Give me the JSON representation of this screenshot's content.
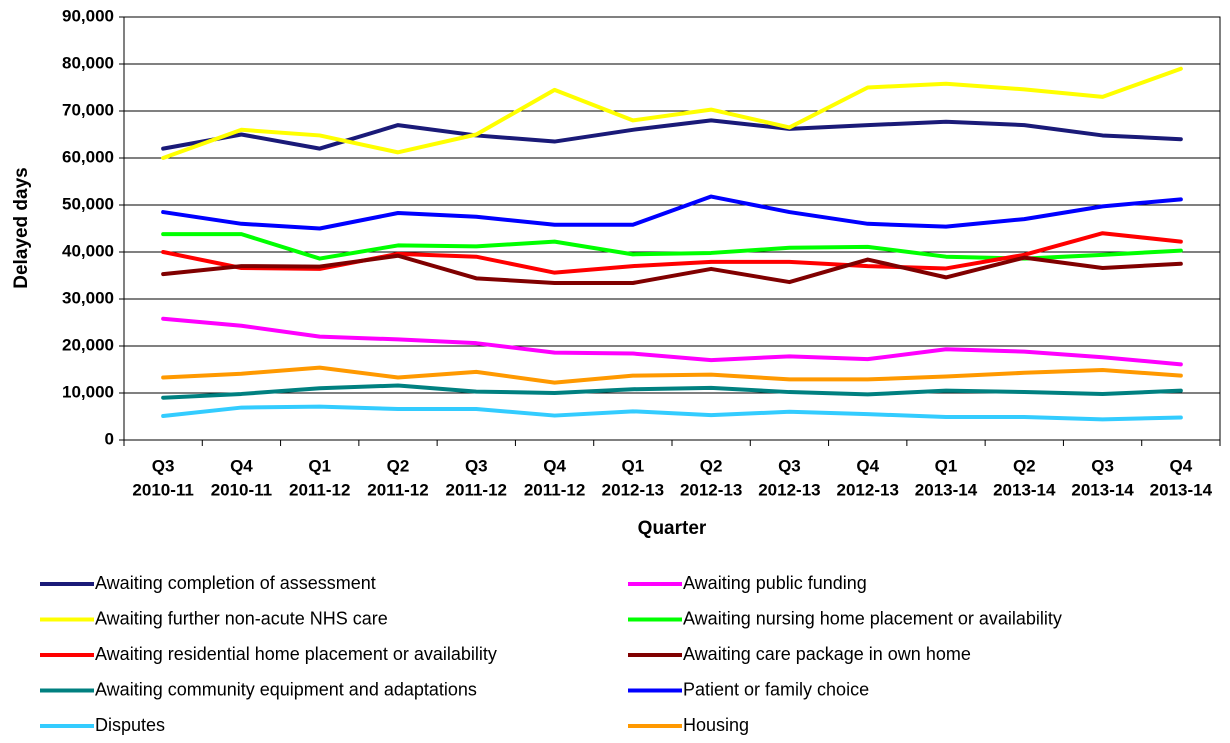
{
  "chart_data": {
    "type": "line",
    "x_label": "Quarter",
    "y_label": "Delayed days",
    "categories": [
      [
        "Q3",
        "2010-11"
      ],
      [
        "Q4",
        "2010-11"
      ],
      [
        "Q1",
        "2011-12"
      ],
      [
        "Q2",
        "2011-12"
      ],
      [
        "Q3",
        "2011-12"
      ],
      [
        "Q4",
        "2011-12"
      ],
      [
        "Q1",
        "2012-13"
      ],
      [
        "Q2",
        "2012-13"
      ],
      [
        "Q3",
        "2012-13"
      ],
      [
        "Q4",
        "2012-13"
      ],
      [
        "Q1",
        "2013-14"
      ],
      [
        "Q2",
        "2013-14"
      ],
      [
        "Q3",
        "2013-14"
      ],
      [
        "Q4",
        "2013-14"
      ]
    ],
    "ylim": [
      0,
      90000
    ],
    "yticks": [
      0,
      {
        "value": 10000,
        "label": "10,000"
      },
      {
        "value": 20000,
        "label": "20,000"
      },
      {
        "value": 30000,
        "label": "30,000"
      },
      {
        "value": 40000,
        "label": "40,000"
      },
      {
        "value": 50000,
        "label": "50,000"
      },
      {
        "value": 60000,
        "label": "60,000"
      },
      {
        "value": 70000,
        "label": "70,000"
      },
      {
        "value": 80000,
        "label": "80,000"
      },
      {
        "value": 90000,
        "label": "90,000"
      }
    ],
    "grid": true,
    "series": [
      {
        "name": "Awaiting completion of assessment",
        "color": "#1a1a78",
        "values": [
          62000,
          65000,
          62000,
          67000,
          64800,
          63500,
          66000,
          68000,
          66200,
          67000,
          67700,
          67000,
          64800,
          64000
        ]
      },
      {
        "name": "Awaiting public funding",
        "color": "#ff00ff",
        "values": [
          25800,
          24300,
          22000,
          21400,
          20600,
          18600,
          18400,
          17000,
          17800,
          17200,
          19300,
          18800,
          17600,
          16100
        ]
      },
      {
        "name": "Awaiting further non-acute NHS care",
        "color": "#ffff00",
        "values": [
          60000,
          66000,
          64800,
          61200,
          65000,
          74500,
          68000,
          70300,
          66500,
          75000,
          75800,
          74600,
          73000,
          79000
        ]
      },
      {
        "name": "Awaiting nursing home placement or availability",
        "color": "#00ff00",
        "values": [
          43800,
          43800,
          38600,
          41400,
          41200,
          42200,
          39500,
          39800,
          40900,
          41100,
          39000,
          38600,
          39400,
          40300
        ]
      },
      {
        "name": "Awaiting residential home placement or availability",
        "color": "#ff0000",
        "values": [
          40000,
          36600,
          36400,
          39600,
          39000,
          35600,
          37000,
          37900,
          37900,
          37000,
          36500,
          39400,
          44000,
          42200
        ]
      },
      {
        "name": "Awaiting care package in own home",
        "color": "#800000",
        "values": [
          35300,
          37000,
          36900,
          39200,
          34400,
          33400,
          33400,
          36400,
          33600,
          38400,
          34600,
          38800,
          36600,
          37500
        ]
      },
      {
        "name": "Awaiting community equipment and adaptations",
        "color": "#008080",
        "values": [
          9000,
          9800,
          11000,
          11600,
          10300,
          10000,
          10800,
          11100,
          10200,
          9700,
          10500,
          10200,
          9800,
          10500
        ]
      },
      {
        "name": "Patient or family choice",
        "color": "#0000ff",
        "values": [
          48500,
          46000,
          45000,
          48300,
          47500,
          45800,
          45800,
          51800,
          48500,
          46000,
          45400,
          47000,
          49700,
          51200
        ]
      },
      {
        "name": "Disputes",
        "color": "#33ccff",
        "values": [
          5100,
          6900,
          7100,
          6600,
          6600,
          5200,
          6100,
          5300,
          6000,
          5500,
          4900,
          4900,
          4400,
          4800
        ]
      },
      {
        "name": "Housing",
        "color": "#ff9900",
        "values": [
          13300,
          14100,
          15400,
          13300,
          14500,
          12200,
          13700,
          13900,
          12900,
          12900,
          13500,
          14300,
          14900,
          13700
        ]
      }
    ]
  }
}
